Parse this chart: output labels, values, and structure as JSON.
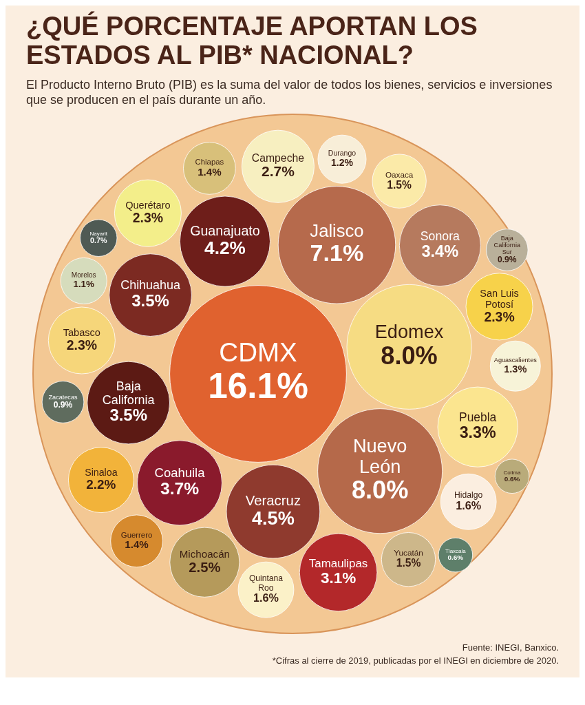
{
  "chart_data": {
    "type": "other",
    "title": "¿QUÉ PORCENTAJE APORTAN LOS ESTADOS AL PIB* NACIONAL?",
    "subtitle": "El Producto Interno Bruto (PIB) es la suma del valor de todos los bienes, servicios e inversiones que se producen en el país durante un año.",
    "categories": [
      "CDMX",
      "Edomex",
      "Nuevo León",
      "Jalisco",
      "Veracruz",
      "Guanajuato",
      "Coahuila",
      "Chihuahua",
      "Baja California",
      "Sonora",
      "Puebla",
      "Tamaulipas",
      "Campeche",
      "Michoacán",
      "Querétaro",
      "Tabasco",
      "San Luis Potosí",
      "Sinaloa",
      "Hidalgo",
      "Quintana Roo",
      "Yucatán",
      "Oaxaca",
      "Chiapas",
      "Guerrero",
      "Aguascalientes",
      "Durango",
      "Morelos",
      "Zacatecas",
      "Baja California Sur",
      "Nayarit",
      "Tlaxcala",
      "Colima"
    ],
    "values": [
      16.1,
      8.0,
      8.0,
      7.1,
      4.5,
      4.2,
      3.7,
      3.5,
      3.5,
      3.4,
      3.3,
      3.1,
      2.7,
      2.5,
      2.3,
      2.3,
      2.3,
      2.2,
      1.6,
      1.6,
      1.5,
      1.5,
      1.4,
      1.4,
      1.3,
      1.2,
      1.1,
      0.9,
      0.9,
      0.7,
      0.6,
      0.6
    ],
    "value_labels": [
      "16.1%",
      "8.0%",
      "8.0%",
      "7.1%",
      "4.5%",
      "4.2%",
      "3.7%",
      "3.5%",
      "3.5%",
      "3.4%",
      "3.3%",
      "3.1%",
      "2.7%",
      "2.5%",
      "2.3%",
      "2.3%",
      "2.3%",
      "2.2%",
      "1.6%",
      "1.6%",
      "1.5%",
      "1.5%",
      "1.4%",
      "1.4%",
      "1.3%",
      "1.2%",
      "1.1%",
      "0.9%",
      "0.9%",
      "0.7%",
      "0.6%",
      "0.6%"
    ],
    "colors": [
      "#e0622f",
      "#f6dc83",
      "#b5694a",
      "#b66a4c",
      "#8f3a2e",
      "#6e1e1a",
      "#8a1a2c",
      "#7c2a22",
      "#5c1a14",
      "#b67a5e",
      "#fbe58f",
      "#b3282a",
      "#f7efc0",
      "#b59a5b",
      "#f3ee8a",
      "#f6d67a",
      "#f7d24a",
      "#f2b33a",
      "#fbeee0",
      "#fbf1c8",
      "#cdb78a",
      "#fbeaa8",
      "#d8c07a",
      "#d68a2e",
      "#f7f3d8",
      "#f8eed8",
      "#d6dcbc",
      "#5f6c5e",
      "#b9b09a",
      "#4f5a54",
      "#5e7f6a",
      "#b9ab7a"
    ],
    "legend": false,
    "annotations": [
      "Fuente: INEGI, Banxico.",
      "*Cifras al cierre de 2019, publicadas por el INEGI en diciembre de 2020."
    ]
  }
}
